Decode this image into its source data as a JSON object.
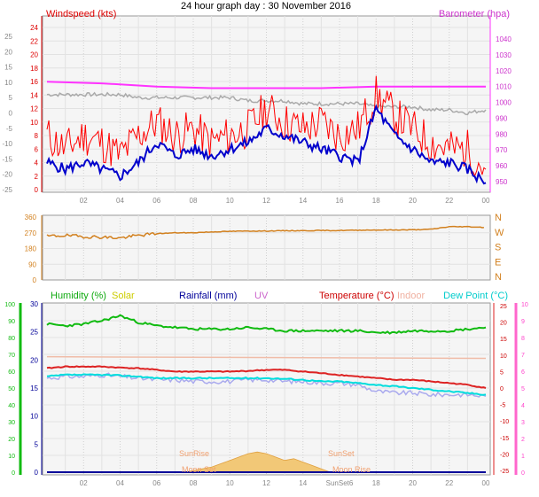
{
  "title": "24 hour graph day : 30 November 2016",
  "colors": {
    "wind_speed": "#ff0000",
    "wind_avg": "#0000cc",
    "barometer": "#ff33ff",
    "temp_axis": "#888888",
    "direction": "#d2801e",
    "humidity": "#11bb11",
    "solar": "#cccc00",
    "rainfall": "#000099",
    "uv": "#cc66cc",
    "temperature": "#dd2222",
    "indoor": "#f0bca8",
    "dew_point": "#00dddd",
    "apparent": "#aaaaee",
    "solar_fill": "#f2c877",
    "grid": "#e2e2e2",
    "plot_bg": "#f5f5f5",
    "axis_text": "#888888"
  },
  "panel1": {
    "left_label": "Windspeed (kts)",
    "right_label": "Barometer (hpa)",
    "outer_ticks": [
      "25",
      "20",
      "15",
      "10",
      "5",
      "0",
      "-5",
      "-10",
      "-15",
      "-20",
      "-25"
    ],
    "inner_ticks": [
      "24",
      "22",
      "20",
      "18",
      "16",
      "14",
      "12",
      "10",
      "8",
      "6",
      "4",
      "2",
      "0"
    ],
    "right_ticks": [
      "1040",
      "1030",
      "1020",
      "1010",
      "1000",
      "990",
      "980",
      "970",
      "960",
      "950"
    ]
  },
  "panel2": {
    "ticks": [
      "360",
      "270",
      "180",
      "90",
      "0"
    ],
    "compass": [
      "N",
      "W",
      "S",
      "E",
      "N"
    ]
  },
  "panel3": {
    "labels": {
      "humidity": "Humidity (%)",
      "solar": "Solar",
      "rainfall": "Rainfall (mm)",
      "uv": "UV",
      "temperature": "Temperature (°C)",
      "indoor": "Indoor",
      "dew_point": "Dew Point (°C)"
    },
    "humidity_ticks": [
      "100",
      "90",
      "80",
      "70",
      "60",
      "50",
      "40",
      "30",
      "20",
      "10",
      "0"
    ],
    "rain_ticks": [
      "30",
      "25",
      "20",
      "15",
      "10",
      "5",
      "0"
    ],
    "temp_ticks": [
      "25",
      "20",
      "15",
      "10",
      "5",
      "0",
      "-5",
      "-10",
      "-15",
      "-20",
      "-25"
    ],
    "uv_ticks": [
      "10",
      "9",
      "8",
      "7",
      "6",
      "5",
      "4",
      "3",
      "2",
      "1",
      "0"
    ],
    "sun_labels": {
      "sunrise": "SunRise",
      "sunset": "SunSet",
      "moonset": "Moon Set",
      "moonrise": "Moon Rise"
    }
  },
  "x_ticks": [
    "02",
    "04",
    "06",
    "08",
    "10",
    "12",
    "14",
    "16",
    "18",
    "20",
    "22",
    "00"
  ],
  "x_ticks_bottom": [
    "02",
    "04",
    "06",
    "08",
    "10",
    "12",
    "14",
    "SunSet6",
    "18",
    "20",
    "22",
    "00"
  ],
  "chart_data": [
    {
      "type": "line",
      "title": "",
      "xlabel": "",
      "ylabel": "Windspeed (kts)",
      "x_hours": [
        0,
        1,
        2,
        3,
        4,
        5,
        6,
        7,
        8,
        9,
        10,
        11,
        12,
        13,
        14,
        15,
        16,
        17,
        18,
        19,
        20,
        21,
        22,
        23,
        24
      ],
      "ylim": [
        0,
        24
      ],
      "series": [
        {
          "name": "Windspeed (kts)",
          "values": [
            8,
            6,
            8,
            7,
            5,
            8,
            10,
            8,
            9,
            7,
            8,
            9,
            12,
            10,
            9,
            10,
            8,
            9,
            14,
            11,
            9,
            7,
            6,
            6,
            3
          ]
        },
        {
          "name": "",
          "values": [
            4,
            3,
            4,
            3,
            2,
            4,
            7,
            5,
            6,
            5,
            6,
            7,
            9,
            8,
            7,
            6,
            5,
            4,
            12,
            8,
            6,
            4,
            4,
            3,
            1
          ]
        }
      ]
    },
    {
      "type": "line",
      "title": "",
      "xlabel": "",
      "ylabel": "Barometer (hpa)",
      "x_hours": [
        0,
        3,
        6,
        9,
        12,
        15,
        18,
        21,
        24
      ],
      "ylim": [
        950,
        1045
      ],
      "series": [
        {
          "name": "Barometer (hpa)",
          "values": [
            1013,
            1012,
            1010,
            1009,
            1009,
            1009,
            1010,
            1010,
            1010
          ]
        }
      ]
    },
    {
      "type": "line",
      "title": "",
      "xlabel": "",
      "ylabel": "",
      "x_hours": [
        0,
        1,
        2,
        3,
        4,
        5,
        6,
        7,
        8,
        9,
        10,
        11,
        12,
        13,
        14,
        15,
        16,
        17,
        18,
        19,
        20,
        21,
        22,
        23,
        24
      ],
      "ylim": [
        -25,
        25
      ],
      "series": [
        {
          "name": "",
          "values": [
            6,
            6,
            6,
            6,
            6,
            5,
            5,
            5,
            5,
            5,
            5,
            4,
            4,
            4,
            3,
            3,
            3,
            3,
            2,
            2,
            2,
            1,
            1,
            0,
            1
          ]
        }
      ]
    },
    {
      "type": "line",
      "title": "",
      "xlabel": "",
      "ylabel": "",
      "x_hours": [
        0,
        1,
        2,
        3,
        4,
        5,
        6,
        7,
        8,
        9,
        10,
        11,
        12,
        13,
        14,
        15,
        16,
        17,
        18,
        19,
        20,
        21,
        22,
        23,
        24
      ],
      "ylim": [
        0,
        360
      ],
      "series": [
        {
          "name": "",
          "values": [
            250,
            255,
            248,
            245,
            240,
            255,
            265,
            270,
            270,
            275,
            278,
            280,
            280,
            282,
            282,
            283,
            283,
            285,
            286,
            286,
            287,
            290,
            305,
            305,
            300
          ]
        }
      ]
    },
    {
      "type": "line",
      "title": "",
      "xlabel": "",
      "ylabel": "Humidity (%)",
      "x_hours": [
        0,
        1,
        2,
        3,
        4,
        5,
        6,
        7,
        8,
        9,
        10,
        11,
        12,
        13,
        14,
        15,
        16,
        17,
        18,
        19,
        20,
        21,
        22,
        23,
        24
      ],
      "ylim": [
        0,
        100
      ],
      "series": [
        {
          "name": "Humidity (%)",
          "values": [
            88,
            87,
            88,
            90,
            93,
            89,
            87,
            86,
            85,
            85,
            85,
            86,
            85,
            84,
            84,
            84,
            84,
            84,
            83,
            83,
            84,
            84,
            84,
            85,
            86
          ]
        }
      ]
    },
    {
      "type": "line",
      "title": "",
      "xlabel": "",
      "ylabel": "Temperature (°C)",
      "x_hours": [
        0,
        1,
        2,
        3,
        4,
        5,
        6,
        7,
        8,
        9,
        10,
        11,
        12,
        13,
        14,
        15,
        16,
        17,
        18,
        19,
        20,
        21,
        22,
        23,
        24
      ],
      "ylim": [
        -25,
        25
      ],
      "series": [
        {
          "name": "Temperature (°C)",
          "values": [
            6,
            6.5,
            6.5,
            6.5,
            6.2,
            6,
            5.5,
            5,
            5,
            5,
            5,
            5.2,
            5.5,
            5.5,
            5,
            4.5,
            4,
            3.5,
            3,
            2.5,
            2.5,
            2,
            1.5,
            1,
            0
          ]
        },
        {
          "name": "Dew Point (°C)",
          "values": [
            3.5,
            4,
            4,
            4,
            3.8,
            3.5,
            3,
            3,
            3,
            3,
            3,
            3,
            3,
            2.8,
            2.5,
            2,
            2,
            1.5,
            1,
            0.5,
            0,
            -0.5,
            -1,
            -1.5,
            -2
          ]
        },
        {
          "name": "",
          "values": [
            3,
            3.5,
            3.5,
            4,
            3.5,
            3,
            2.5,
            2.5,
            2,
            2,
            2,
            2.5,
            2.5,
            2,
            2,
            1.5,
            1.5,
            1,
            -1,
            -1.5,
            -1.5,
            -2,
            -2,
            -2,
            -2.5
          ]
        },
        {
          "name": "Indoor",
          "values": [
            null,
            null,
            null,
            null,
            null,
            null,
            null,
            null,
            null,
            null,
            null,
            null,
            null,
            null,
            null,
            null,
            null,
            null,
            null,
            null,
            null,
            null,
            null,
            null,
            null
          ]
        }
      ]
    },
    {
      "type": "area",
      "title": "",
      "xlabel": "",
      "ylabel": "Solar",
      "x_hours": [
        7.5,
        8,
        8.5,
        9,
        9.5,
        10,
        10.5,
        11,
        11.5,
        12,
        12.5,
        13,
        13.5,
        14,
        14.5,
        15,
        15.5
      ],
      "ylim": [
        0,
        100
      ],
      "series": [
        {
          "name": "Solar",
          "values": [
            0,
            1,
            2,
            3,
            5,
            7,
            9,
            11,
            12,
            11,
            9,
            7,
            8,
            6,
            4,
            2,
            0
          ]
        }
      ]
    },
    {
      "type": "line",
      "title": "",
      "xlabel": "",
      "ylabel": "Rainfall (mm)",
      "x_hours": [
        0,
        24
      ],
      "ylim": [
        0,
        30
      ],
      "series": [
        {
          "name": "Rainfall (mm)",
          "values": [
            0,
            0
          ]
        }
      ]
    }
  ]
}
